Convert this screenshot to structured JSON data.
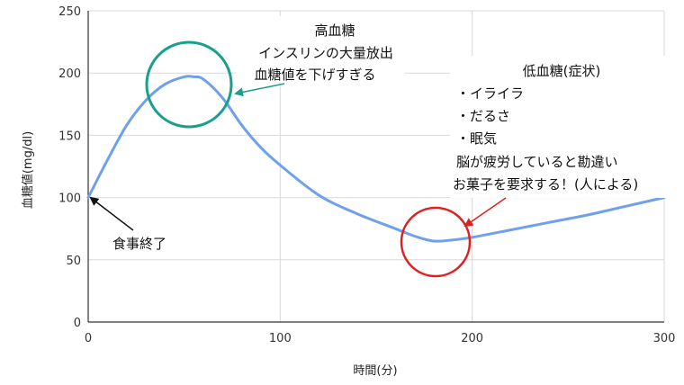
{
  "chart_data": {
    "type": "line",
    "xlabel": "時間(分)",
    "ylabel": "血糖値(mg/dl)",
    "xlim": [
      0,
      300
    ],
    "ylim": [
      0,
      250
    ],
    "x_ticks": [
      "0",
      "100",
      "200",
      "300"
    ],
    "y_ticks": [
      "0",
      "50",
      "100",
      "150",
      "200",
      "250"
    ],
    "grid": true,
    "series": [
      {
        "color": "#6ea0ee",
        "x": [
          0,
          10,
          20,
          30,
          40,
          50,
          55,
          60,
          70,
          80,
          90,
          100,
          120,
          140,
          160,
          170,
          180,
          190,
          200,
          220,
          240,
          260,
          280,
          300
        ],
        "y": [
          100,
          130,
          158,
          178,
          191,
          197,
          197,
          195,
          180,
          158,
          140,
          126,
          102,
          87,
          75,
          69,
          65,
          66,
          68,
          74,
          80,
          86,
          93,
          100
        ]
      }
    ],
    "annotations": {
      "high": {
        "title": "高血糖",
        "lines": [
          "インスリンの大量放出",
          "血糖値を下げすぎる"
        ]
      },
      "low": {
        "title": "低血糖(症状)",
        "lines": [
          "・イライラ",
          "・だるさ",
          "・眠気",
          "脳が疲労していると勘違い",
          "お菓子を要求する！(人による)"
        ]
      },
      "meal_end": "食事終了"
    },
    "colors": {
      "line": "#6ea0ee",
      "high_circle": "#1a9e8e",
      "low_circle": "#e02020",
      "grid": "#d9d9d9"
    }
  }
}
